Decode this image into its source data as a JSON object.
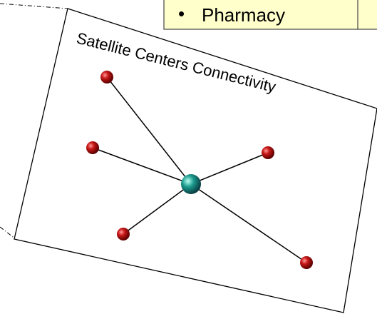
{
  "header": {
    "bullet": "•",
    "text": "Pharmacy"
  },
  "diagram": {
    "title": "Satellite Centers Connectivity"
  }
}
